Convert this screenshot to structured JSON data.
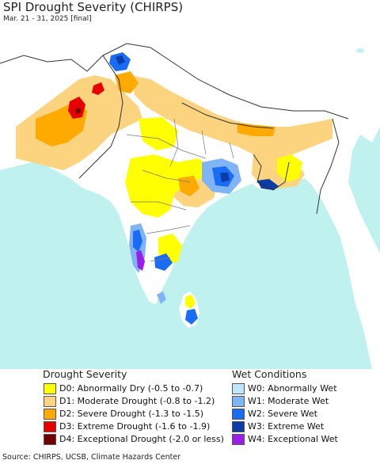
{
  "title": "SPI Drought Severity (CHIRPS)",
  "subtitle": "Mar. 21 - 31, 2025 [final]",
  "colors": {
    "ocean": "#bff1ef",
    "land_neutral": "#ffffff",
    "D0": "#ffff00",
    "D1": "#fcd37f",
    "D2": "#ffaa00",
    "D3": "#e60000",
    "D4": "#730000",
    "W0": "#bfe6ff",
    "W1": "#7fb5f5",
    "W2": "#1a6cf5",
    "W3": "#0a3da8",
    "W4": "#9b1ee6"
  },
  "legend": {
    "drought_heading": "Drought Severity",
    "wet_heading": "Wet Conditions",
    "drought_items": [
      {
        "key": "D0",
        "label": "D0: Abnormally Dry (-0.5 to -0.7)"
      },
      {
        "key": "D1",
        "label": "D1: Moderate Drought (-0.8 to -1.2)"
      },
      {
        "key": "D2",
        "label": "D2: Severe Drought (-1.3 to -1.5)"
      },
      {
        "key": "D3",
        "label": "D3: Extreme Drought (-1.6 to -1.9)"
      },
      {
        "key": "D4",
        "label": "D4: Exceptional Drought (-2.0 or less)"
      }
    ],
    "wet_items": [
      {
        "key": "W0",
        "label": "W0: Abnormally Wet"
      },
      {
        "key": "W1",
        "label": "W1: Moderate Wet"
      },
      {
        "key": "W2",
        "label": "W2: Severe Wet"
      },
      {
        "key": "W3",
        "label": "W3: Extreme Wet"
      },
      {
        "key": "W4",
        "label": "W4: Exceptional Wet"
      }
    ]
  },
  "source": "Source: CHIRPS, UCSB, Climate Hazards Center"
}
